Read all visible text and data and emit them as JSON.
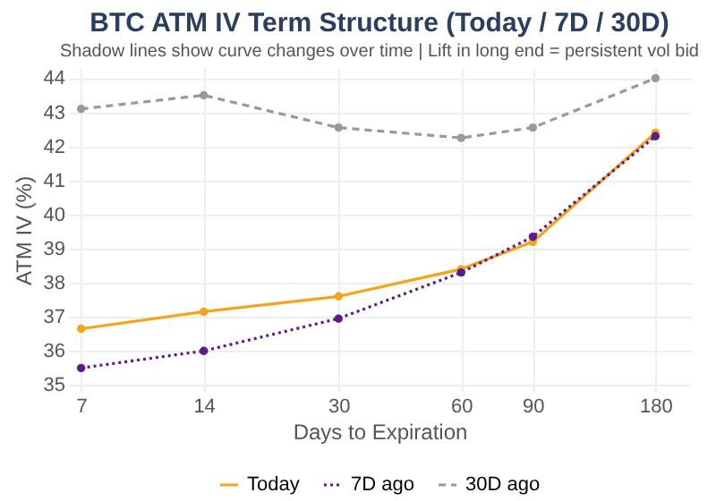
{
  "chart_data": {
    "type": "line",
    "title": "BTC ATM IV Term Structure (Today / 7D / 30D)",
    "subtitle": "Shadow lines show curve changes over time | Lift in long end = persistent vol bid",
    "xlabel": "Days to Expiration",
    "ylabel": "ATM IV (%)",
    "log": "x",
    "x": [
      7,
      14,
      30,
      60,
      90,
      180
    ],
    "series": [
      {
        "name": "Today",
        "color": "#f5a31a",
        "line_style": "solid",
        "values": [
          36.65,
          37.15,
          37.6,
          38.4,
          39.2,
          42.4
        ]
      },
      {
        "name": "7D ago",
        "color": "#5c1a8c",
        "line_style": "dotted",
        "values": [
          35.5,
          36.0,
          36.95,
          38.3,
          39.35,
          42.3
        ]
      },
      {
        "name": "30D ago",
        "color": "#999999",
        "line_style": "dashed",
        "values": [
          43.1,
          43.5,
          42.55,
          42.25,
          42.55,
          44.0
        ]
      }
    ],
    "xlim": [
      6.5,
      220
    ],
    "xticks": [
      7,
      14,
      30,
      60,
      90,
      180
    ],
    "ylim": [
      34.8,
      44.3
    ],
    "yticks": [
      35,
      36,
      37,
      38,
      39,
      40,
      41,
      42,
      43,
      44
    ],
    "grid": true,
    "legend": "bottom",
    "marker": "circle"
  }
}
